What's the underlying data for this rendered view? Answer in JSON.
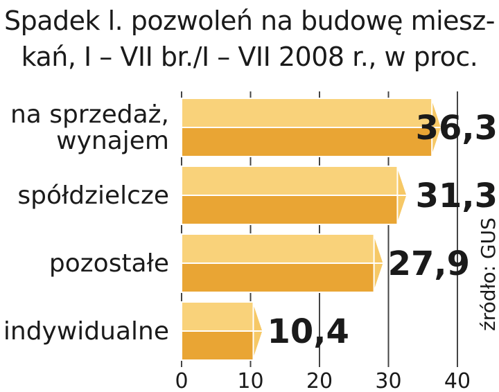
{
  "title_lines": [
    "Spadek l. pozwoleń na budowę miesz-",
    "kań, I – VII br./I – VII 2008 r., w proc."
  ],
  "source": "źródło: GUS",
  "colors": {
    "bar_top": "#f9d27a",
    "bar_front": "#e9a534",
    "bar_end": "#f6c866",
    "outline": "#ffffff",
    "grid": "#444444"
  },
  "chart_data": {
    "type": "bar",
    "orientation": "horizontal",
    "title": "Spadek l. pozwoleń na budowę mieszkań, I – VII br./I – VII 2008 r., w proc.",
    "categories": [
      [
        "na sprzedaż,",
        "wynajem"
      ],
      [
        "spółdzielcze"
      ],
      [
        "pozostałe"
      ],
      [
        "indywidualne"
      ]
    ],
    "values": [
      36.3,
      31.3,
      27.9,
      10.4
    ],
    "value_labels": [
      "36,3",
      "31,3",
      "27,9",
      "10,4"
    ],
    "xlim": [
      0,
      40
    ],
    "xticks": [
      0,
      10,
      20,
      30,
      40
    ],
    "grid": true,
    "xlabel": "",
    "ylabel": ""
  }
}
